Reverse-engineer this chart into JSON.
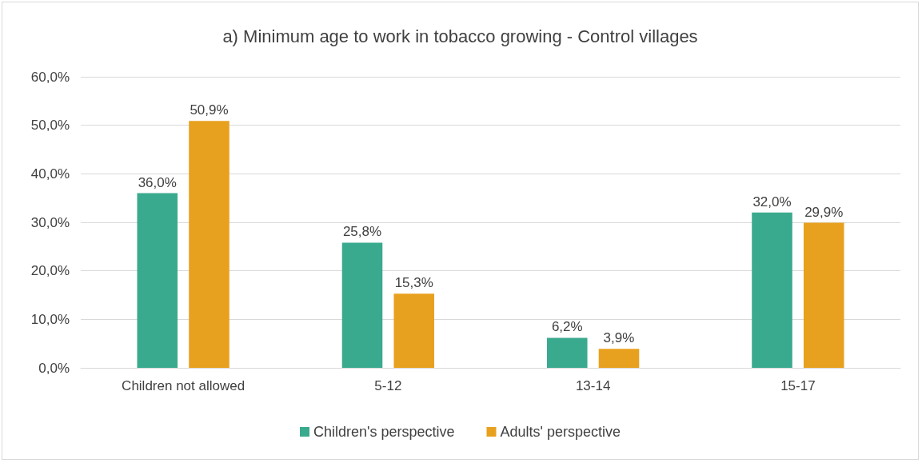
{
  "chart_data": {
    "type": "bar",
    "title": "a) Minimum age to work in tobacco growing - Control villages",
    "categories": [
      "Children not allowed",
      "5-12",
      "13-14",
      "15-17"
    ],
    "series": [
      {
        "name": "Children's perspective",
        "color": "#3aaa8e",
        "values": [
          36.0,
          25.8,
          6.2,
          32.0
        ],
        "value_labels": [
          "36,0%",
          "25,8%",
          "6,2%",
          "32,0%"
        ]
      },
      {
        "name": "Adults' perspective",
        "color": "#e8a11e",
        "values": [
          50.9,
          15.3,
          3.9,
          29.9
        ],
        "value_labels": [
          "50,9%",
          "15,3%",
          "3,9%",
          "29,9%"
        ]
      }
    ],
    "ylim": [
      0,
      60
    ],
    "yticks": [
      {
        "value": 0,
        "label": "0,0%"
      },
      {
        "value": 10,
        "label": "10,0%"
      },
      {
        "value": 20,
        "label": "20,0%"
      },
      {
        "value": 30,
        "label": "30,0%"
      },
      {
        "value": 40,
        "label": "40,0%"
      },
      {
        "value": 50,
        "label": "50,0%"
      },
      {
        "value": 60,
        "label": "60,0%"
      }
    ],
    "grid": "y",
    "legend": "bottom"
  }
}
